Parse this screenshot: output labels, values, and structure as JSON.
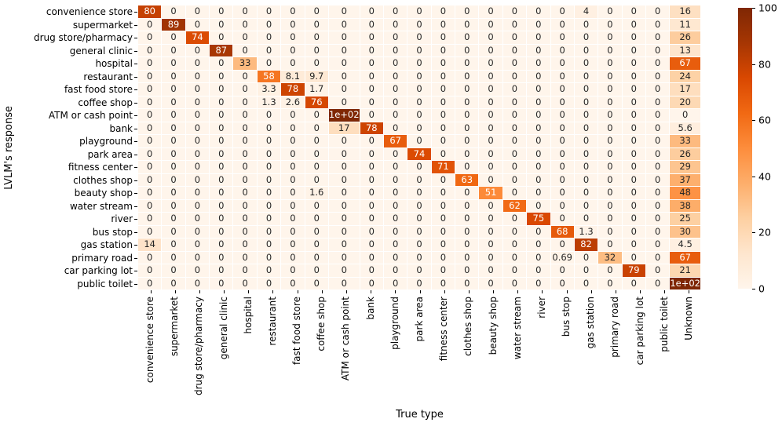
{
  "chart_data": {
    "type": "heatmap",
    "title": "",
    "xlabel": "True type",
    "ylabel": "LVLM's response",
    "x_categories": [
      "convenience store",
      "supermarket",
      "drug store/pharmacy",
      "general clinic",
      "hospital",
      "restaurant",
      "fast food store",
      "coffee shop",
      "ATM or cash point",
      "bank",
      "playground",
      "park area",
      "fitness center",
      "clothes shop",
      "beauty shop",
      "water stream",
      "river",
      "bus stop",
      "gas station",
      "primary road",
      "car parking lot",
      "public toilet",
      "Unknown"
    ],
    "y_categories": [
      "convenience store",
      "supermarket",
      "drug store/pharmacy",
      "general clinic",
      "hospital",
      "restaurant",
      "fast food store",
      "coffee shop",
      "ATM or cash point",
      "bank",
      "playground",
      "park area",
      "fitness center",
      "clothes shop",
      "beauty shop",
      "water stream",
      "river",
      "bus stop",
      "gas station",
      "primary road",
      "car parking lot",
      "public toilet"
    ],
    "values": [
      [
        80,
        0,
        0,
        0,
        0,
        0,
        0,
        0,
        0,
        0,
        0,
        0,
        0,
        0,
        0,
        0,
        0,
        0,
        4,
        0,
        0,
        0,
        16
      ],
      [
        0,
        89,
        0,
        0,
        0,
        0,
        0,
        0,
        0,
        0,
        0,
        0,
        0,
        0,
        0,
        0,
        0,
        0,
        0,
        0,
        0,
        0,
        11
      ],
      [
        0,
        0,
        74,
        0,
        0,
        0,
        0,
        0,
        0,
        0,
        0,
        0,
        0,
        0,
        0,
        0,
        0,
        0,
        0,
        0,
        0,
        0,
        26
      ],
      [
        0,
        0,
        0,
        87,
        0,
        0,
        0,
        0,
        0,
        0,
        0,
        0,
        0,
        0,
        0,
        0,
        0,
        0,
        0,
        0,
        0,
        0,
        13
      ],
      [
        0,
        0,
        0,
        0,
        33,
        0,
        0,
        0,
        0,
        0,
        0,
        0,
        0,
        0,
        0,
        0,
        0,
        0,
        0,
        0,
        0,
        0,
        67
      ],
      [
        0,
        0,
        0,
        0,
        0,
        58,
        8.1,
        9.7,
        0,
        0,
        0,
        0,
        0,
        0,
        0,
        0,
        0,
        0,
        0,
        0,
        0,
        0,
        24
      ],
      [
        0,
        0,
        0,
        0,
        0,
        3.3,
        78,
        1.7,
        0,
        0,
        0,
        0,
        0,
        0,
        0,
        0,
        0,
        0,
        0,
        0,
        0,
        0,
        17
      ],
      [
        0,
        0,
        0,
        0,
        0,
        1.3,
        2.6,
        76,
        0,
        0,
        0,
        0,
        0,
        0,
        0,
        0,
        0,
        0,
        0,
        0,
        0,
        0,
        20
      ],
      [
        0,
        0,
        0,
        0,
        0,
        0,
        0,
        0,
        100,
        0,
        0,
        0,
        0,
        0,
        0,
        0,
        0,
        0,
        0,
        0,
        0,
        0,
        0
      ],
      [
        0,
        0,
        0,
        0,
        0,
        0,
        0,
        0,
        17,
        78,
        0,
        0,
        0,
        0,
        0,
        0,
        0,
        0,
        0,
        0,
        0,
        0,
        5.6
      ],
      [
        0,
        0,
        0,
        0,
        0,
        0,
        0,
        0,
        0,
        0,
        67,
        0,
        0,
        0,
        0,
        0,
        0,
        0,
        0,
        0,
        0,
        0,
        33
      ],
      [
        0,
        0,
        0,
        0,
        0,
        0,
        0,
        0,
        0,
        0,
        0,
        74,
        0,
        0,
        0,
        0,
        0,
        0,
        0,
        0,
        0,
        0,
        26
      ],
      [
        0,
        0,
        0,
        0,
        0,
        0,
        0,
        0,
        0,
        0,
        0,
        0,
        71,
        0,
        0,
        0,
        0,
        0,
        0,
        0,
        0,
        0,
        29
      ],
      [
        0,
        0,
        0,
        0,
        0,
        0,
        0,
        0,
        0,
        0,
        0,
        0,
        0,
        63,
        0,
        0,
        0,
        0,
        0,
        0,
        0,
        0,
        37
      ],
      [
        0,
        0,
        0,
        0,
        0,
        0,
        0,
        1.6,
        0,
        0,
        0,
        0,
        0,
        0,
        51,
        0,
        0,
        0,
        0,
        0,
        0,
        0,
        48
      ],
      [
        0,
        0,
        0,
        0,
        0,
        0,
        0,
        0,
        0,
        0,
        0,
        0,
        0,
        0,
        0,
        62,
        0,
        0,
        0,
        0,
        0,
        0,
        38
      ],
      [
        0,
        0,
        0,
        0,
        0,
        0,
        0,
        0,
        0,
        0,
        0,
        0,
        0,
        0,
        0,
        0,
        75,
        0,
        0,
        0,
        0,
        0,
        25
      ],
      [
        0,
        0,
        0,
        0,
        0,
        0,
        0,
        0,
        0,
        0,
        0,
        0,
        0,
        0,
        0,
        0,
        0,
        68,
        1.3,
        0,
        0,
        0,
        30
      ],
      [
        14,
        0,
        0,
        0,
        0,
        0,
        0,
        0,
        0,
        0,
        0,
        0,
        0,
        0,
        0,
        0,
        0,
        0,
        82,
        0,
        0,
        0,
        4.5
      ],
      [
        0,
        0,
        0,
        0,
        0,
        0,
        0,
        0,
        0,
        0,
        0,
        0,
        0,
        0,
        0,
        0,
        0,
        0.69,
        0,
        32,
        0,
        0,
        67
      ],
      [
        0,
        0,
        0,
        0,
        0,
        0,
        0,
        0,
        0,
        0,
        0,
        0,
        0,
        0,
        0,
        0,
        0,
        0,
        0,
        0,
        79,
        0,
        21
      ],
      [
        0,
        0,
        0,
        0,
        0,
        0,
        0,
        0,
        0,
        0,
        0,
        0,
        0,
        0,
        0,
        0,
        0,
        0,
        0,
        0,
        0,
        0,
        100
      ]
    ],
    "vmin": 0,
    "vmax": 100,
    "colormap": "Oranges",
    "annotation_format": ".2g",
    "colorbar_ticks": [
      0,
      20,
      40,
      60,
      80,
      100
    ],
    "colorbar_position": "right",
    "grid": "white cell borders",
    "legend_position": "none"
  },
  "colors": {
    "cmap_anchors": [
      "#fff5eb",
      "#fee6ce",
      "#fdd0a2",
      "#fdae6b",
      "#fd8d3c",
      "#f16913",
      "#d94801",
      "#a63603",
      "#7f2704"
    ],
    "annotation_dark": "#262626",
    "annotation_light": "#ffffff",
    "background": "#ffffff",
    "tick_color": "#000000"
  }
}
